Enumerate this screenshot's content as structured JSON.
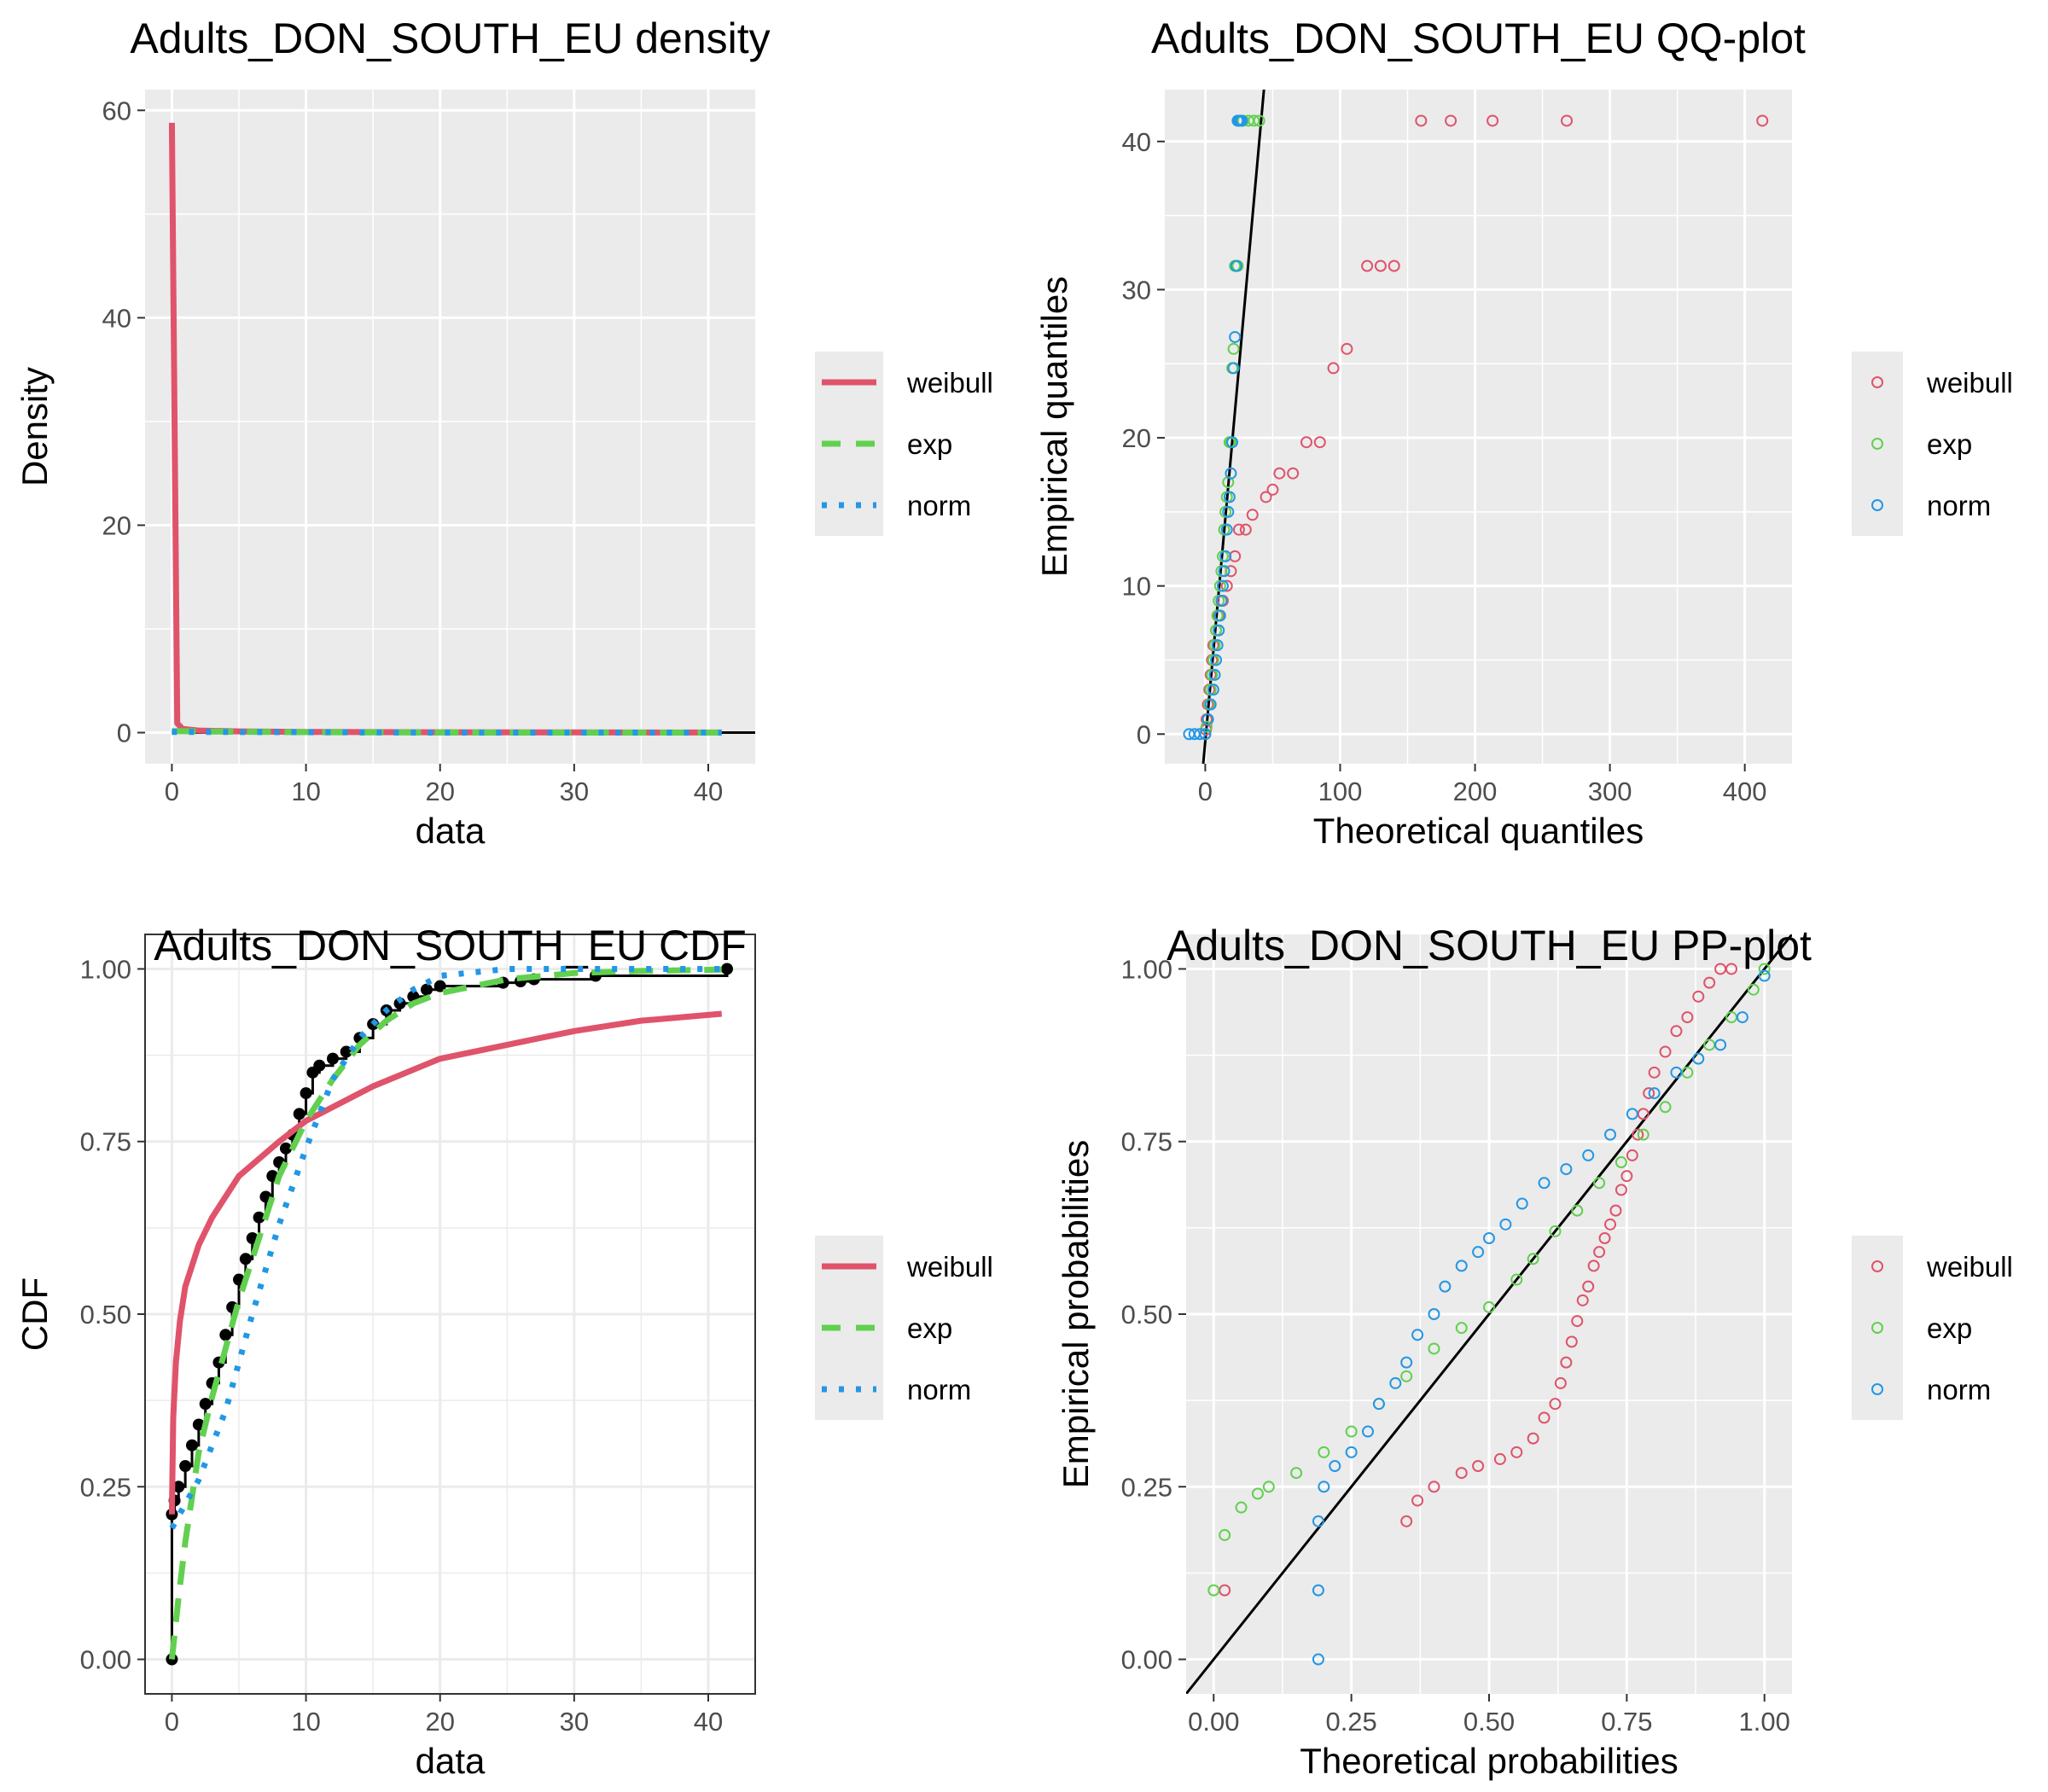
{
  "colors": {
    "weibull": "#DF536B",
    "exp": "#61D04F",
    "norm": "#2297E6",
    "empirical": "#000000",
    "panel_bg": "#EBEBEB",
    "grid": "#FFFFFF"
  },
  "chart_data": [
    {
      "id": "density",
      "type": "line",
      "title": "Adults_DON_SOUTH_EU density",
      "xlabel": "data",
      "ylabel": "Density",
      "xlim": [
        -2,
        43.5
      ],
      "ylim": [
        -3,
        62
      ],
      "x_ticks": [
        0,
        10,
        20,
        30,
        40
      ],
      "y_ticks": [
        0,
        20,
        40,
        60
      ],
      "grid": true,
      "legend_position": "right",
      "legend": [
        "weibull",
        "exp",
        "norm"
      ],
      "histogram_baseline": {
        "x": [
          0,
          43.5
        ],
        "y": 0
      },
      "series": [
        {
          "name": "weibull",
          "style": "solid",
          "x": [
            0,
            0.4,
            0.8,
            2,
            5,
            10,
            20,
            30,
            41
          ],
          "y": [
            58.8,
            0.9,
            0.35,
            0.2,
            0.12,
            0.07,
            0.03,
            0.02,
            0.01
          ]
        },
        {
          "name": "exp",
          "style": "dashed",
          "x": [
            0,
            5,
            10,
            20,
            30,
            41
          ],
          "y": [
            0.15,
            0.08,
            0.04,
            0.012,
            0.003,
            0.001
          ]
        },
        {
          "name": "norm",
          "style": "dotted",
          "x": [
            0,
            5,
            10,
            20,
            30,
            41
          ],
          "y": [
            0.06,
            0.06,
            0.04,
            0.005,
            0.0,
            0.0
          ]
        }
      ]
    },
    {
      "id": "qq",
      "type": "scatter",
      "title": "Adults_DON_SOUTH_EU QQ-plot",
      "xlabel": "Theoretical quantiles",
      "ylabel": "Empirical quantiles",
      "xlim": [
        -30,
        435
      ],
      "ylim": [
        -2,
        43.5
      ],
      "x_ticks": [
        0,
        100,
        200,
        300,
        400
      ],
      "y_ticks": [
        0,
        10,
        20,
        30,
        40
      ],
      "grid": true,
      "legend_position": "right",
      "legend": [
        "weibull",
        "exp",
        "norm"
      ],
      "reference_line": {
        "x": [
          -1.5,
          43.5
        ],
        "y": [
          -2,
          43.5
        ]
      },
      "empirical_quantiles": [
        0,
        0.5,
        1,
        2,
        3,
        4,
        5,
        6,
        7,
        8,
        9,
        10,
        11,
        12,
        13.8,
        15,
        16,
        16.5,
        17,
        17.6,
        19.7,
        24.7,
        26,
        26.8,
        31.6,
        41.4
      ],
      "series": [
        {
          "name": "weibull",
          "x": [
            0.5,
            1,
            2,
            3,
            4,
            5,
            6,
            8,
            10,
            13,
            16,
            19,
            22,
            25,
            30,
            35,
            45,
            50,
            55,
            65,
            75,
            85,
            95,
            105,
            120,
            130,
            140,
            160,
            182,
            213,
            268,
            413
          ],
          "y": [
            0.3,
            1,
            2,
            3,
            4,
            5,
            6,
            7,
            8,
            9,
            10,
            11,
            12,
            13.8,
            13.8,
            14.8,
            16,
            16.5,
            17.6,
            17.6,
            19.7,
            19.7,
            24.7,
            26,
            31.6,
            31.6,
            31.6,
            41.4,
            41.4,
            41.4,
            41.4,
            41.4
          ]
        },
        {
          "name": "exp",
          "x": [
            0.1,
            1,
            2,
            3,
            4,
            5,
            6,
            7,
            8,
            9,
            10,
            11,
            12,
            13,
            14,
            15,
            16,
            17,
            18,
            19,
            20,
            21,
            22,
            24,
            28,
            32,
            36,
            40
          ],
          "y": [
            0,
            0.5,
            1,
            2,
            3,
            4,
            5,
            6,
            7,
            8,
            9,
            10,
            11,
            12,
            13.8,
            15,
            16,
            17,
            19.7,
            19.7,
            24.7,
            26,
            31.6,
            31.6,
            41.4,
            41.4,
            41.4,
            41.4
          ]
        },
        {
          "name": "norm",
          "x": [
            -12,
            -8,
            -4,
            0,
            2,
            4,
            6,
            7,
            8,
            9,
            10,
            11,
            12,
            13,
            14,
            15,
            16,
            17,
            18,
            19,
            20,
            21,
            22,
            23,
            24,
            25,
            26,
            27
          ],
          "y": [
            0,
            0,
            0,
            0,
            1,
            2,
            3,
            4,
            5,
            6,
            7,
            8,
            9,
            10,
            11,
            12,
            13.8,
            15,
            16,
            17.6,
            19.7,
            24.7,
            26.8,
            31.6,
            41.4,
            41.4,
            41.4,
            41.4
          ]
        }
      ]
    },
    {
      "id": "cdf",
      "type": "line",
      "title": "Adults_DON_SOUTH_EU CDF",
      "xlabel": "data",
      "ylabel": "CDF",
      "xlim": [
        -2,
        43.5
      ],
      "ylim": [
        -0.05,
        1.05
      ],
      "x_ticks": [
        0,
        10,
        20,
        30,
        40
      ],
      "y_ticks": [
        0.0,
        0.25,
        0.5,
        0.75,
        1.0
      ],
      "y_tick_labels": [
        "0.00",
        "0.25",
        "0.50",
        "0.75",
        "1.00"
      ],
      "grid": true,
      "legend_position": "right",
      "legend": [
        "weibull",
        "exp",
        "norm"
      ],
      "empirical": {
        "x": [
          0,
          0,
          0.2,
          0.5,
          1,
          1.5,
          2,
          2.5,
          3,
          3.5,
          4,
          4.5,
          5,
          5.5,
          6,
          6.5,
          7,
          7.5,
          8,
          8.5,
          9,
          9.5,
          10,
          10.5,
          11,
          12,
          13,
          14,
          15,
          16,
          17,
          18,
          19,
          20,
          24.7,
          26,
          27,
          31.6,
          41.4
        ],
        "y": [
          0,
          0.21,
          0.23,
          0.25,
          0.28,
          0.31,
          0.34,
          0.37,
          0.4,
          0.43,
          0.47,
          0.51,
          0.55,
          0.58,
          0.61,
          0.64,
          0.67,
          0.7,
          0.72,
          0.74,
          0.76,
          0.79,
          0.82,
          0.85,
          0.86,
          0.87,
          0.88,
          0.9,
          0.92,
          0.94,
          0.95,
          0.96,
          0.97,
          0.975,
          0.98,
          0.982,
          0.985,
          0.99,
          1.0
        ]
      },
      "series": [
        {
          "name": "weibull",
          "style": "solid",
          "x": [
            0,
            0.1,
            0.3,
            0.6,
            1,
            2,
            3,
            5,
            8,
            10,
            15,
            20,
            25,
            30,
            35,
            41
          ],
          "y": [
            0.21,
            0.35,
            0.43,
            0.49,
            0.54,
            0.6,
            0.64,
            0.7,
            0.75,
            0.78,
            0.83,
            0.87,
            0.89,
            0.91,
            0.925,
            0.935
          ]
        },
        {
          "name": "exp",
          "style": "dashed",
          "x": [
            0,
            0.5,
            1,
            2,
            3,
            4,
            5,
            6,
            7,
            8,
            9,
            10,
            12,
            14,
            16,
            18,
            20,
            25,
            30,
            35,
            41
          ],
          "y": [
            0.0,
            0.09,
            0.17,
            0.3,
            0.38,
            0.45,
            0.52,
            0.58,
            0.64,
            0.7,
            0.74,
            0.78,
            0.84,
            0.89,
            0.925,
            0.95,
            0.965,
            0.985,
            0.994,
            0.997,
            0.999
          ]
        },
        {
          "name": "norm",
          "style": "dotted",
          "x": [
            0,
            2,
            4,
            6,
            8,
            10,
            12,
            14,
            16,
            18,
            20,
            25,
            30,
            35,
            41
          ],
          "y": [
            0.19,
            0.26,
            0.36,
            0.5,
            0.63,
            0.74,
            0.84,
            0.9,
            0.94,
            0.97,
            0.99,
            1.0,
            1.0,
            1.0,
            1.0
          ]
        }
      ]
    },
    {
      "id": "pp",
      "type": "scatter",
      "title": "Adults_DON_SOUTH_EU PP-plot",
      "xlabel": "Theoretical probabilities",
      "ylabel": "Empirical probabilities",
      "xlim": [
        -0.05,
        1.05
      ],
      "ylim": [
        -0.05,
        1.05
      ],
      "x_ticks": [
        0.0,
        0.25,
        0.5,
        0.75,
        1.0
      ],
      "x_tick_labels": [
        "0.00",
        "0.25",
        "0.50",
        "0.75",
        "1.00"
      ],
      "y_ticks": [
        0.0,
        0.25,
        0.5,
        0.75,
        1.0
      ],
      "y_tick_labels": [
        "0.00",
        "0.25",
        "0.50",
        "0.75",
        "1.00"
      ],
      "grid": true,
      "legend_position": "right",
      "legend": [
        "weibull",
        "exp",
        "norm"
      ],
      "reference_line": {
        "x": [
          -0.05,
          1.05
        ],
        "y": [
          -0.05,
          1.05
        ]
      },
      "series": [
        {
          "name": "weibull",
          "x": [
            0.02,
            0.35,
            0.37,
            0.4,
            0.45,
            0.48,
            0.52,
            0.55,
            0.58,
            0.6,
            0.62,
            0.63,
            0.64,
            0.65,
            0.66,
            0.67,
            0.68,
            0.69,
            0.7,
            0.71,
            0.72,
            0.73,
            0.74,
            0.75,
            0.76,
            0.77,
            0.78,
            0.79,
            0.8,
            0.82,
            0.84,
            0.86,
            0.88,
            0.9,
            0.92,
            0.94
          ],
          "y": [
            0.1,
            0.2,
            0.23,
            0.25,
            0.27,
            0.28,
            0.29,
            0.3,
            0.32,
            0.35,
            0.37,
            0.4,
            0.43,
            0.46,
            0.49,
            0.52,
            0.54,
            0.57,
            0.59,
            0.61,
            0.63,
            0.65,
            0.68,
            0.7,
            0.73,
            0.76,
            0.79,
            0.82,
            0.85,
            0.88,
            0.91,
            0.93,
            0.96,
            0.98,
            1.0,
            1.0
          ]
        },
        {
          "name": "exp",
          "x": [
            0.0,
            0.02,
            0.05,
            0.08,
            0.1,
            0.15,
            0.2,
            0.25,
            0.3,
            0.35,
            0.4,
            0.45,
            0.5,
            0.55,
            0.58,
            0.62,
            0.66,
            0.7,
            0.74,
            0.78,
            0.82,
            0.86,
            0.9,
            0.94,
            0.98,
            1.0
          ],
          "y": [
            0.1,
            0.18,
            0.22,
            0.24,
            0.25,
            0.27,
            0.3,
            0.33,
            0.37,
            0.41,
            0.45,
            0.48,
            0.51,
            0.55,
            0.58,
            0.62,
            0.65,
            0.69,
            0.72,
            0.76,
            0.8,
            0.85,
            0.89,
            0.93,
            0.97,
            1.0
          ]
        },
        {
          "name": "norm",
          "x": [
            0.19,
            0.19,
            0.19,
            0.2,
            0.22,
            0.25,
            0.28,
            0.3,
            0.33,
            0.35,
            0.37,
            0.4,
            0.42,
            0.45,
            0.48,
            0.5,
            0.53,
            0.56,
            0.6,
            0.64,
            0.68,
            0.72,
            0.76,
            0.8,
            0.84,
            0.88,
            0.92,
            0.96,
            1.0
          ],
          "y": [
            0.0,
            0.1,
            0.2,
            0.25,
            0.28,
            0.3,
            0.33,
            0.37,
            0.4,
            0.43,
            0.47,
            0.5,
            0.54,
            0.57,
            0.59,
            0.61,
            0.63,
            0.66,
            0.69,
            0.71,
            0.73,
            0.76,
            0.79,
            0.82,
            0.85,
            0.87,
            0.89,
            0.93,
            0.99
          ]
        }
      ]
    }
  ]
}
